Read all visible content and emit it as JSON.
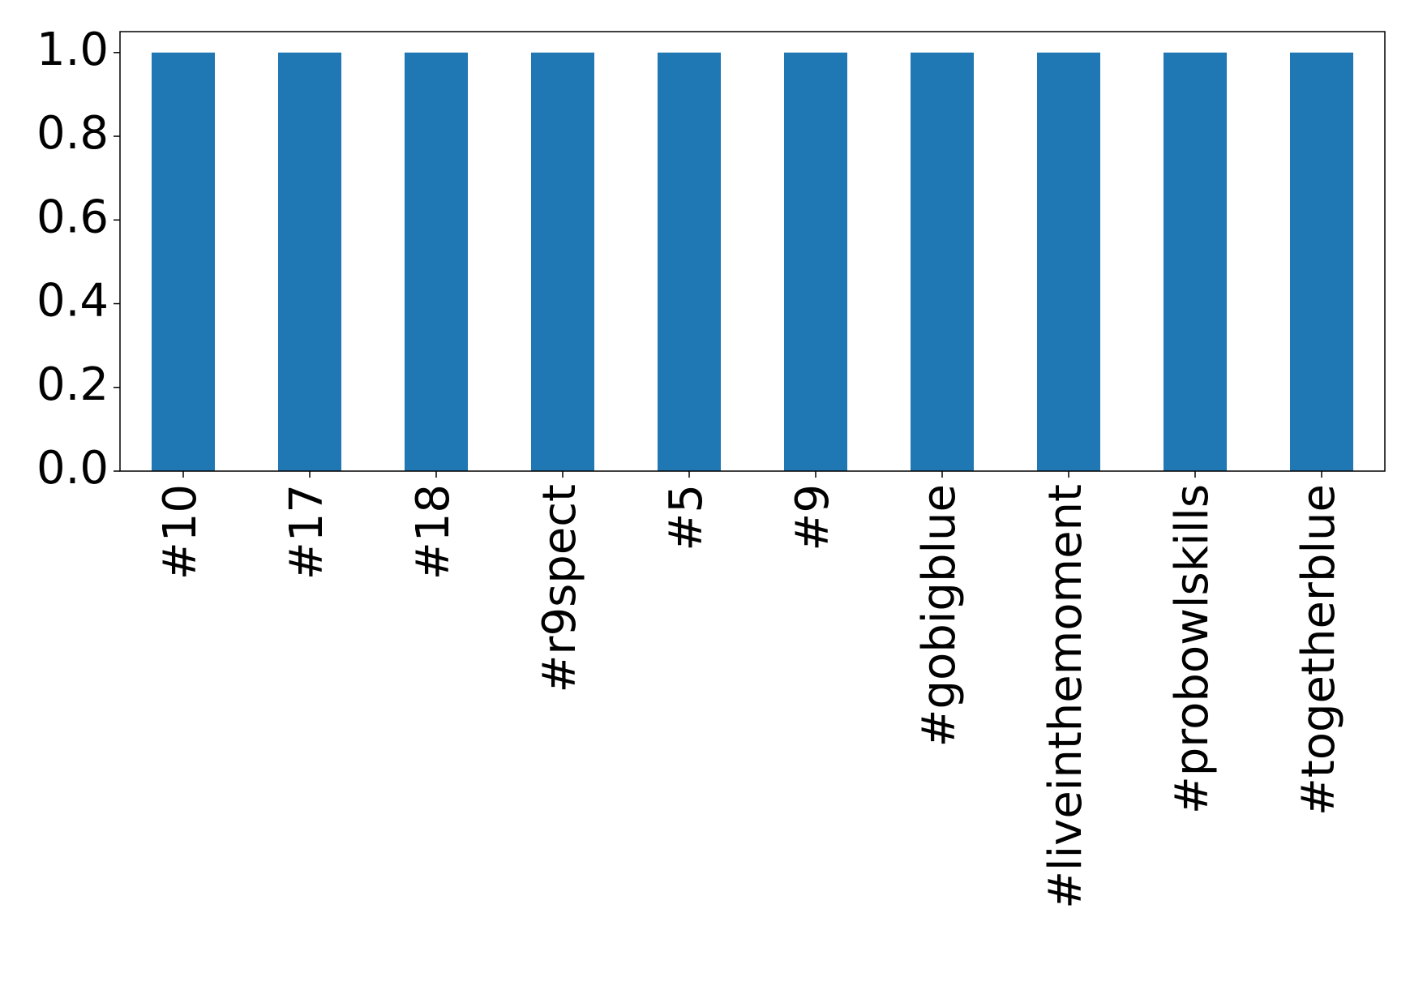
{
  "chart_data": {
    "type": "bar",
    "categories": [
      "#10",
      "#17",
      "#18",
      "#r9spect",
      "#5",
      "#9",
      "#gobigblue",
      "#liveinthemoment",
      "#probowlskills",
      "#togetherblue"
    ],
    "values": [
      1,
      1,
      1,
      1,
      1,
      1,
      1,
      1,
      1,
      1
    ],
    "color": "#1f77b4",
    "ylim": [
      0,
      1.05
    ],
    "yticks": [
      {
        "value": 0,
        "label": "0.0"
      },
      0.2,
      0.4,
      0.6,
      0.8,
      {
        "value": 1,
        "label": "1.0"
      }
    ],
    "grid": false
  }
}
